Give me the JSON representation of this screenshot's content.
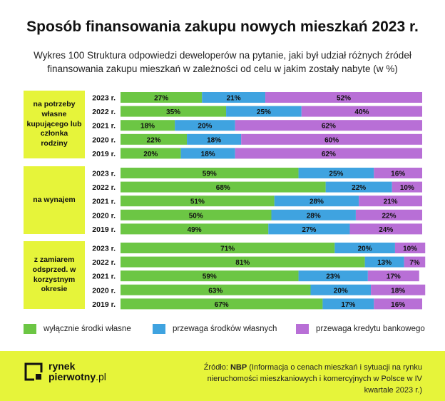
{
  "title": "Sposób finansowania zakupu nowych mieszkań 2023 r.",
  "subtitle_line1": "Wykres 100 Struktura odpowiedzi deweloperów na pytanie, jaki był udział różnych źródeł",
  "subtitle_line2": "finansowania zakupu mieszkań w zależności od celu w jakim zostały nabyte (w %)",
  "colors": {
    "green": "#6cc644",
    "blue": "#3fa3e0",
    "purple": "#b86fd6",
    "yellow": "#e6f43a"
  },
  "chart_data": {
    "type": "bar",
    "stacked": true,
    "orientation": "horizontal",
    "unit": "%",
    "xlim": [
      0,
      100
    ],
    "legend_position": "bottom",
    "groups": [
      {
        "label": "na potrzeby własne kupującego lub członka rodziny",
        "categories": [
          "2023 r.",
          "2022 r.",
          "2021 r.",
          "2020 r.",
          "2019 r."
        ],
        "series": [
          {
            "name": "wyłącznie środki własne",
            "values": [
              27,
              35,
              18,
              22,
              20
            ]
          },
          {
            "name": "przewaga środków własnych",
            "values": [
              21,
              25,
              20,
              18,
              18
            ]
          },
          {
            "name": "przewaga kredytu bankowego",
            "values": [
              52,
              40,
              62,
              60,
              62
            ]
          }
        ]
      },
      {
        "label": "na wynajem",
        "categories": [
          "2023 r.",
          "2022 r.",
          "2021 r.",
          "2020 r.",
          "2019 r."
        ],
        "series": [
          {
            "name": "wyłącznie środki własne",
            "values": [
              59,
              68,
              51,
              50,
              49
            ]
          },
          {
            "name": "przewaga środków własnych",
            "values": [
              25,
              22,
              28,
              28,
              27
            ]
          },
          {
            "name": "przewaga kredytu bankowego",
            "values": [
              16,
              10,
              21,
              22,
              24
            ]
          }
        ]
      },
      {
        "label": "z zamiarem odsprzed. w korzystnym okresie",
        "categories": [
          "2023 r.",
          "2022 r.",
          "2021 r.",
          "2020 r.",
          "2019 r."
        ],
        "series": [
          {
            "name": "wyłącznie środki własne",
            "values": [
              71,
              81,
              59,
              63,
              67
            ]
          },
          {
            "name": "przewaga środków własnych",
            "values": [
              20,
              13,
              23,
              20,
              17
            ]
          },
          {
            "name": "przewaga kredytu bankowego",
            "values": [
              10,
              7,
              17,
              18,
              16
            ]
          }
        ]
      }
    ]
  },
  "legend": [
    {
      "label": "wyłącznie środki własne",
      "color": "#6cc644"
    },
    {
      "label": "przewaga środków własnych",
      "color": "#3fa3e0"
    },
    {
      "label": "przewaga kredytu bankowego",
      "color": "#b86fd6"
    }
  ],
  "footer": {
    "logo_line1": "rynek",
    "logo_line2_bold": "pierwotny",
    "logo_line2_light": ".pl",
    "source_prefix": "Źródło: ",
    "source_bold": "NBP",
    "source_rest": " (Informacja o cenach mieszkań i sytuacji na rynku nieruchomości mieszkaniowych i komercyjnych w Polsce w IV kwartale 2023 r.)"
  }
}
